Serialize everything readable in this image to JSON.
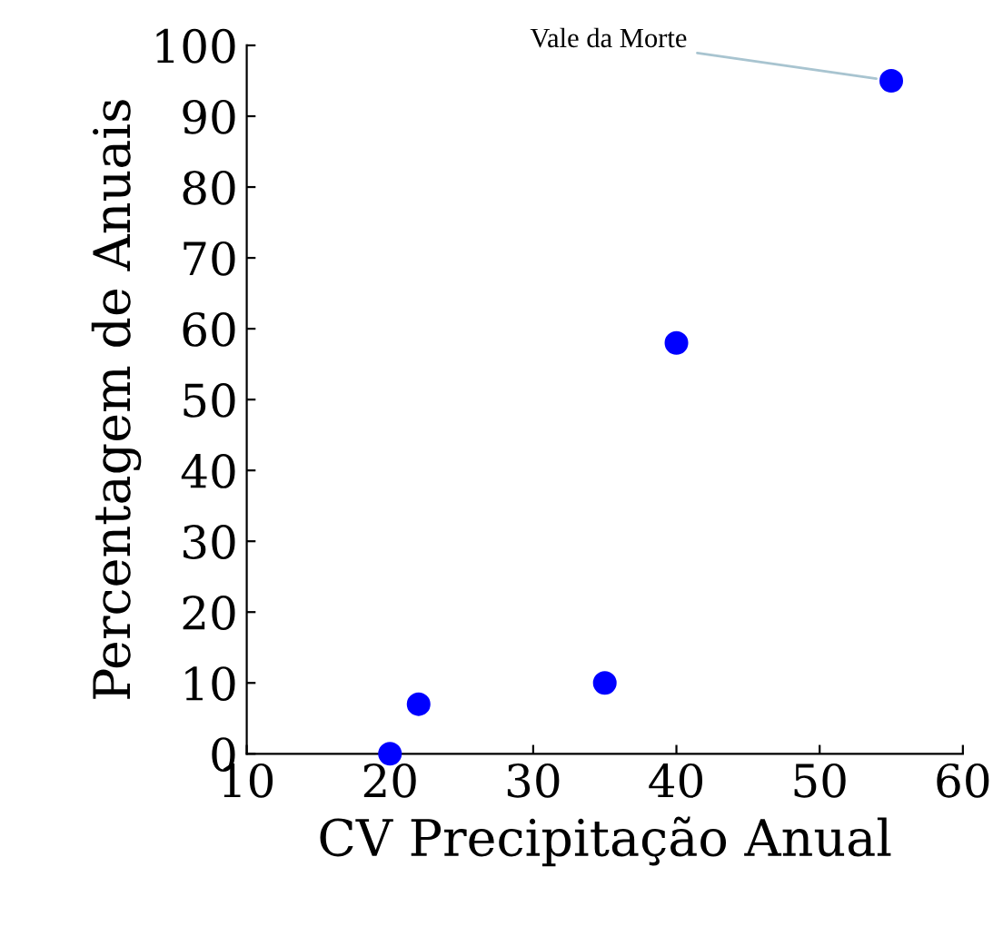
{
  "chart_data": {
    "type": "scatter",
    "xlabel": "CV Precipitação Anual",
    "ylabel": "Percentagem de Anuais",
    "x": [
      20,
      22,
      35,
      40,
      55
    ],
    "series": [
      {
        "color": "#0000ff",
        "values": [
          0,
          7,
          10,
          58,
          95
        ]
      }
    ],
    "annotations": [
      {
        "text": "Vale da Morte",
        "x": 55,
        "y": 95
      }
    ],
    "xlim": [
      10,
      60
    ],
    "xticks": [
      10,
      20,
      30,
      40,
      50,
      60
    ],
    "ylim": [
      0,
      100
    ],
    "yticks": [
      0,
      10,
      20,
      30,
      40,
      50,
      60,
      70,
      80,
      90,
      100
    ],
    "grid": false,
    "legend": false,
    "marker": "circle"
  }
}
